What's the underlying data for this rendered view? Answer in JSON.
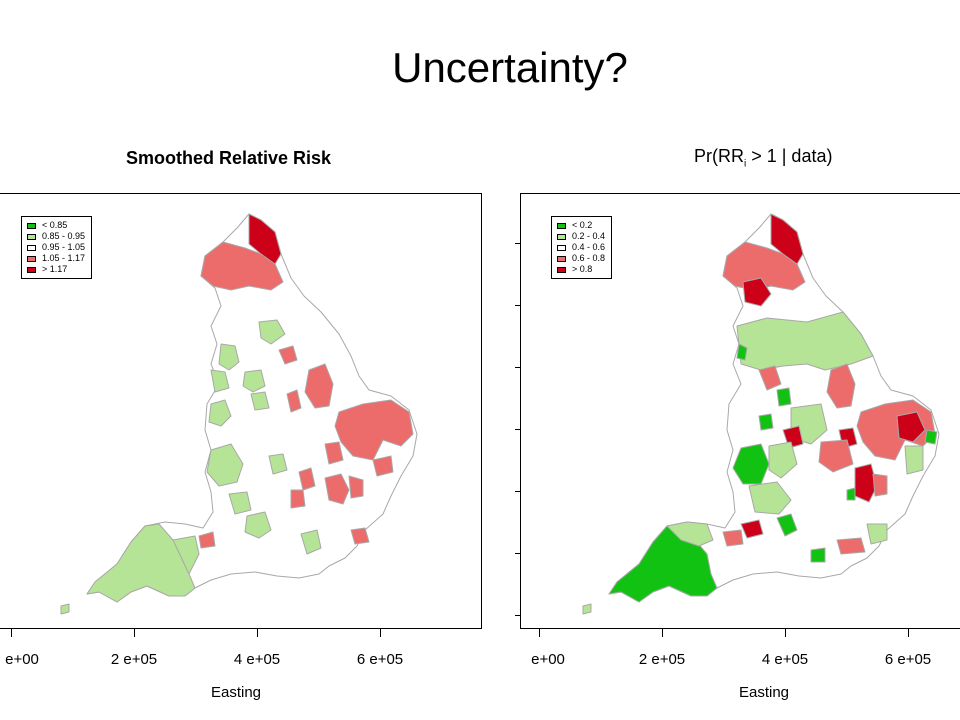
{
  "slide_title": "Uncertainty?",
  "colors": {
    "dark_green": "#12c212",
    "light_green": "#b6e496",
    "white": "#ffffff",
    "light_red": "#ec6c6c",
    "dark_red": "#cc0018",
    "boundary": "#a8a8a8"
  },
  "maps": [
    {
      "title": "Smoothed Relative Risk",
      "legend": [
        {
          "label": "< 0.85",
          "color": "#12c212"
        },
        {
          "label": "0.85 - 0.95",
          "color": "#b6e496"
        },
        {
          "label": "0.95 - 1.05",
          "color": "#ffffff"
        },
        {
          "label": "1.05 - 1.17",
          "color": "#ec6c6c"
        },
        {
          "label": "> 1.17",
          "color": "#cc0018"
        }
      ],
      "x_ticks": [
        "e+00",
        "2  e+05",
        "4  e+05",
        "6  e+05"
      ],
      "xlabel": "Easting"
    },
    {
      "title_parts": {
        "prefix": "Pr(RR",
        "subscript": "i",
        "suffix": " > 1 | data)"
      },
      "legend": [
        {
          "label": "< 0.2",
          "color": "#12c212"
        },
        {
          "label": "0.2 - 0.4",
          "color": "#b6e496"
        },
        {
          "label": "0.4 - 0.6",
          "color": "#ffffff"
        },
        {
          "label": "0.6 - 0.8",
          "color": "#ec6c6c"
        },
        {
          "label": "> 0.8",
          "color": "#cc0018"
        }
      ],
      "x_ticks": [
        "e+00",
        "2  e+05",
        "4  e+05",
        "6  e+05"
      ],
      "xlabel": "Easting"
    }
  ]
}
